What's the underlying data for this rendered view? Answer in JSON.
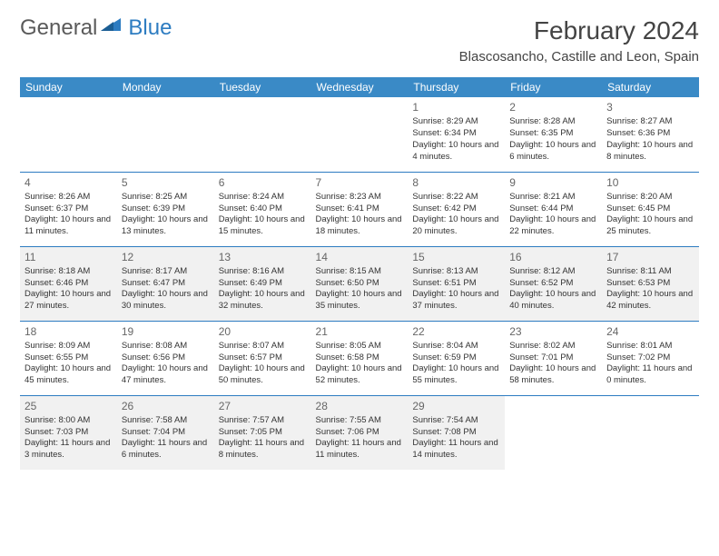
{
  "logo": {
    "word1": "General",
    "word2": "Blue"
  },
  "title": "February 2024",
  "location": "Blascosancho, Castille and Leon, Spain",
  "colors": {
    "header_bg": "#3a8ac6",
    "header_text": "#ffffff",
    "rule": "#2d7cc1",
    "alt_row_bg": "#f1f1f1",
    "page_bg": "#ffffff",
    "text": "#333333",
    "daynum": "#666666",
    "logo_gray": "#5a5a5a",
    "logo_blue": "#2d7cc1"
  },
  "typography": {
    "title_fontsize": 28,
    "location_fontsize": 15,
    "dayheader_fontsize": 12,
    "daynum_fontsize": 12,
    "cell_fontsize": 9.5
  },
  "day_headers": [
    "Sunday",
    "Monday",
    "Tuesday",
    "Wednesday",
    "Thursday",
    "Friday",
    "Saturday"
  ],
  "weeks": [
    {
      "alt": false,
      "days": [
        null,
        null,
        null,
        null,
        {
          "n": "1",
          "sunrise": "8:29 AM",
          "sunset": "6:34 PM",
          "daylight": "10 hours and 4 minutes."
        },
        {
          "n": "2",
          "sunrise": "8:28 AM",
          "sunset": "6:35 PM",
          "daylight": "10 hours and 6 minutes."
        },
        {
          "n": "3",
          "sunrise": "8:27 AM",
          "sunset": "6:36 PM",
          "daylight": "10 hours and 8 minutes."
        }
      ]
    },
    {
      "alt": false,
      "days": [
        {
          "n": "4",
          "sunrise": "8:26 AM",
          "sunset": "6:37 PM",
          "daylight": "10 hours and 11 minutes."
        },
        {
          "n": "5",
          "sunrise": "8:25 AM",
          "sunset": "6:39 PM",
          "daylight": "10 hours and 13 minutes."
        },
        {
          "n": "6",
          "sunrise": "8:24 AM",
          "sunset": "6:40 PM",
          "daylight": "10 hours and 15 minutes."
        },
        {
          "n": "7",
          "sunrise": "8:23 AM",
          "sunset": "6:41 PM",
          "daylight": "10 hours and 18 minutes."
        },
        {
          "n": "8",
          "sunrise": "8:22 AM",
          "sunset": "6:42 PM",
          "daylight": "10 hours and 20 minutes."
        },
        {
          "n": "9",
          "sunrise": "8:21 AM",
          "sunset": "6:44 PM",
          "daylight": "10 hours and 22 minutes."
        },
        {
          "n": "10",
          "sunrise": "8:20 AM",
          "sunset": "6:45 PM",
          "daylight": "10 hours and 25 minutes."
        }
      ]
    },
    {
      "alt": true,
      "days": [
        {
          "n": "11",
          "sunrise": "8:18 AM",
          "sunset": "6:46 PM",
          "daylight": "10 hours and 27 minutes."
        },
        {
          "n": "12",
          "sunrise": "8:17 AM",
          "sunset": "6:47 PM",
          "daylight": "10 hours and 30 minutes."
        },
        {
          "n": "13",
          "sunrise": "8:16 AM",
          "sunset": "6:49 PM",
          "daylight": "10 hours and 32 minutes."
        },
        {
          "n": "14",
          "sunrise": "8:15 AM",
          "sunset": "6:50 PM",
          "daylight": "10 hours and 35 minutes."
        },
        {
          "n": "15",
          "sunrise": "8:13 AM",
          "sunset": "6:51 PM",
          "daylight": "10 hours and 37 minutes."
        },
        {
          "n": "16",
          "sunrise": "8:12 AM",
          "sunset": "6:52 PM",
          "daylight": "10 hours and 40 minutes."
        },
        {
          "n": "17",
          "sunrise": "8:11 AM",
          "sunset": "6:53 PM",
          "daylight": "10 hours and 42 minutes."
        }
      ]
    },
    {
      "alt": false,
      "days": [
        {
          "n": "18",
          "sunrise": "8:09 AM",
          "sunset": "6:55 PM",
          "daylight": "10 hours and 45 minutes."
        },
        {
          "n": "19",
          "sunrise": "8:08 AM",
          "sunset": "6:56 PM",
          "daylight": "10 hours and 47 minutes."
        },
        {
          "n": "20",
          "sunrise": "8:07 AM",
          "sunset": "6:57 PM",
          "daylight": "10 hours and 50 minutes."
        },
        {
          "n": "21",
          "sunrise": "8:05 AM",
          "sunset": "6:58 PM",
          "daylight": "10 hours and 52 minutes."
        },
        {
          "n": "22",
          "sunrise": "8:04 AM",
          "sunset": "6:59 PM",
          "daylight": "10 hours and 55 minutes."
        },
        {
          "n": "23",
          "sunrise": "8:02 AM",
          "sunset": "7:01 PM",
          "daylight": "10 hours and 58 minutes."
        },
        {
          "n": "24",
          "sunrise": "8:01 AM",
          "sunset": "7:02 PM",
          "daylight": "11 hours and 0 minutes."
        }
      ]
    },
    {
      "alt": true,
      "days": [
        {
          "n": "25",
          "sunrise": "8:00 AM",
          "sunset": "7:03 PM",
          "daylight": "11 hours and 3 minutes."
        },
        {
          "n": "26",
          "sunrise": "7:58 AM",
          "sunset": "7:04 PM",
          "daylight": "11 hours and 6 minutes."
        },
        {
          "n": "27",
          "sunrise": "7:57 AM",
          "sunset": "7:05 PM",
          "daylight": "11 hours and 8 minutes."
        },
        {
          "n": "28",
          "sunrise": "7:55 AM",
          "sunset": "7:06 PM",
          "daylight": "11 hours and 11 minutes."
        },
        {
          "n": "29",
          "sunrise": "7:54 AM",
          "sunset": "7:08 PM",
          "daylight": "11 hours and 14 minutes."
        },
        null,
        null
      ]
    }
  ],
  "labels": {
    "sunrise": "Sunrise: ",
    "sunset": "Sunset: ",
    "daylight": "Daylight: "
  }
}
